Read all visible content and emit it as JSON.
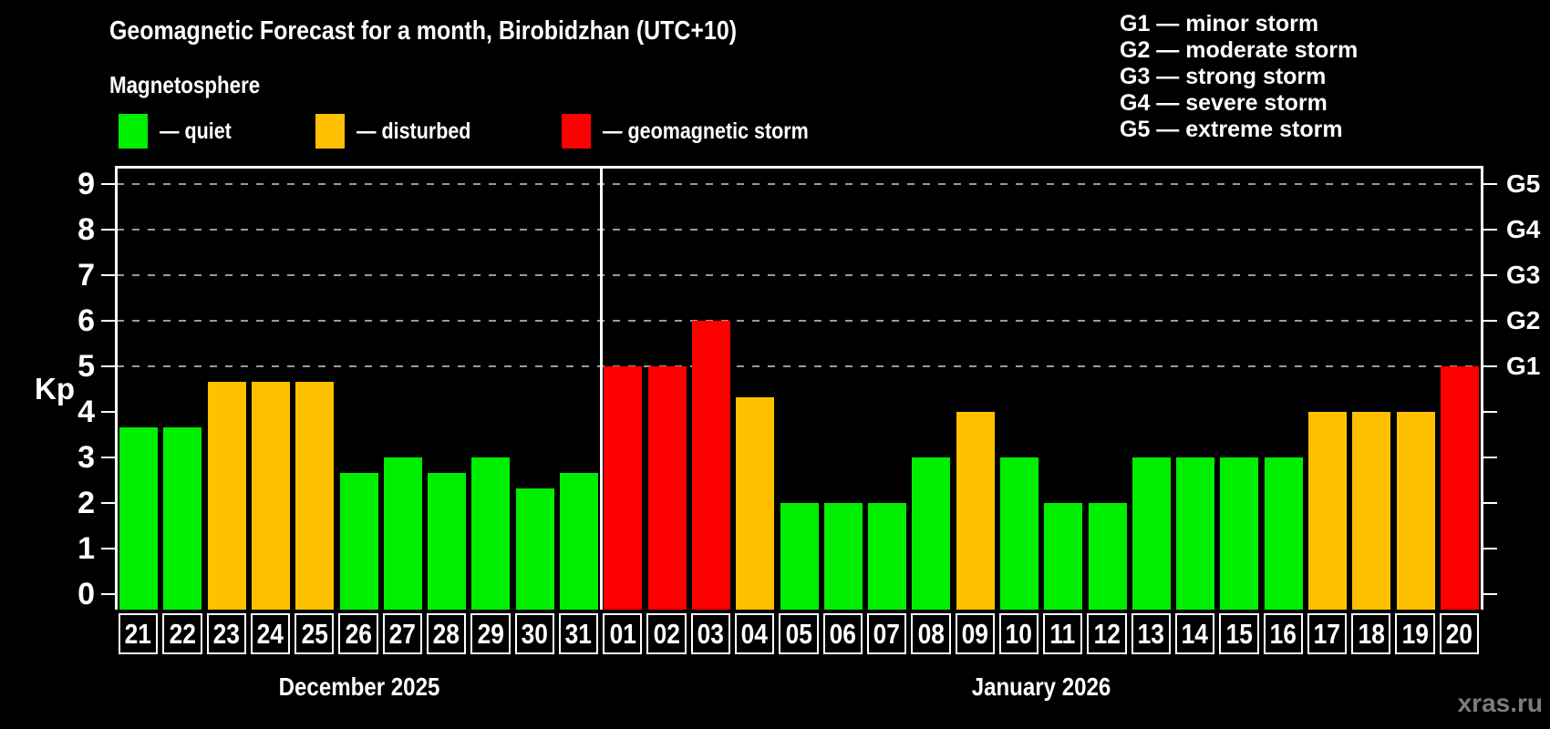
{
  "title": "Geomagnetic Forecast for a month, Birobidzhan (UTC+10)",
  "subtitle": "Magnetosphere",
  "legend": {
    "items": [
      {
        "label": "— quiet",
        "color": "#00ef00"
      },
      {
        "label": "— disturbed",
        "color": "#ffc000"
      },
      {
        "label": "— geomagnetic storm",
        "color": "#ff0000"
      }
    ]
  },
  "storm_legend": {
    "items": [
      "G1 — minor storm",
      "G2 — moderate storm",
      "G3 — strong storm",
      "G4 — severe storm",
      "G5 — extreme storm"
    ]
  },
  "watermark": "xras.ru",
  "chart_data": {
    "type": "bar",
    "title": "Geomagnetic Forecast for a month, Birobidzhan (UTC+10)",
    "ylabel": "Kp",
    "ylim": [
      0,
      9.4
    ],
    "yticks": [
      0,
      1,
      2,
      3,
      4,
      5,
      6,
      7,
      8,
      9
    ],
    "gridlines_at": [
      5,
      6,
      7,
      8,
      9
    ],
    "grid_style": "dashed",
    "legend_position": "top",
    "right_axis_labels": [
      {
        "kp": 5,
        "label": "G1"
      },
      {
        "kp": 6,
        "label": "G2"
      },
      {
        "kp": 7,
        "label": "G3"
      },
      {
        "kp": 8,
        "label": "G4"
      },
      {
        "kp": 9,
        "label": "G5"
      }
    ],
    "months": [
      {
        "label": "December 2025",
        "days": 11
      },
      {
        "label": "January 2026",
        "days": 20
      }
    ],
    "categories": [
      "21",
      "22",
      "23",
      "24",
      "25",
      "26",
      "27",
      "28",
      "29",
      "30",
      "31",
      "01",
      "02",
      "03",
      "04",
      "05",
      "06",
      "07",
      "08",
      "09",
      "10",
      "11",
      "12",
      "13",
      "14",
      "15",
      "16",
      "17",
      "18",
      "19",
      "20"
    ],
    "values": [
      3.67,
      3.67,
      4.67,
      4.67,
      4.67,
      2.67,
      3,
      2.67,
      3,
      2.33,
      2.67,
      5,
      5,
      6,
      4.33,
      2,
      2,
      2,
      3,
      4,
      3,
      2,
      2,
      3,
      3,
      3,
      3,
      4,
      4,
      4,
      5
    ],
    "colors": {
      "quiet": "#00ef00",
      "disturbed": "#ffc000",
      "storm": "#ff0000"
    },
    "color_thresholds": {
      "storm_min": 5,
      "disturbed_min": 3.9
    }
  }
}
